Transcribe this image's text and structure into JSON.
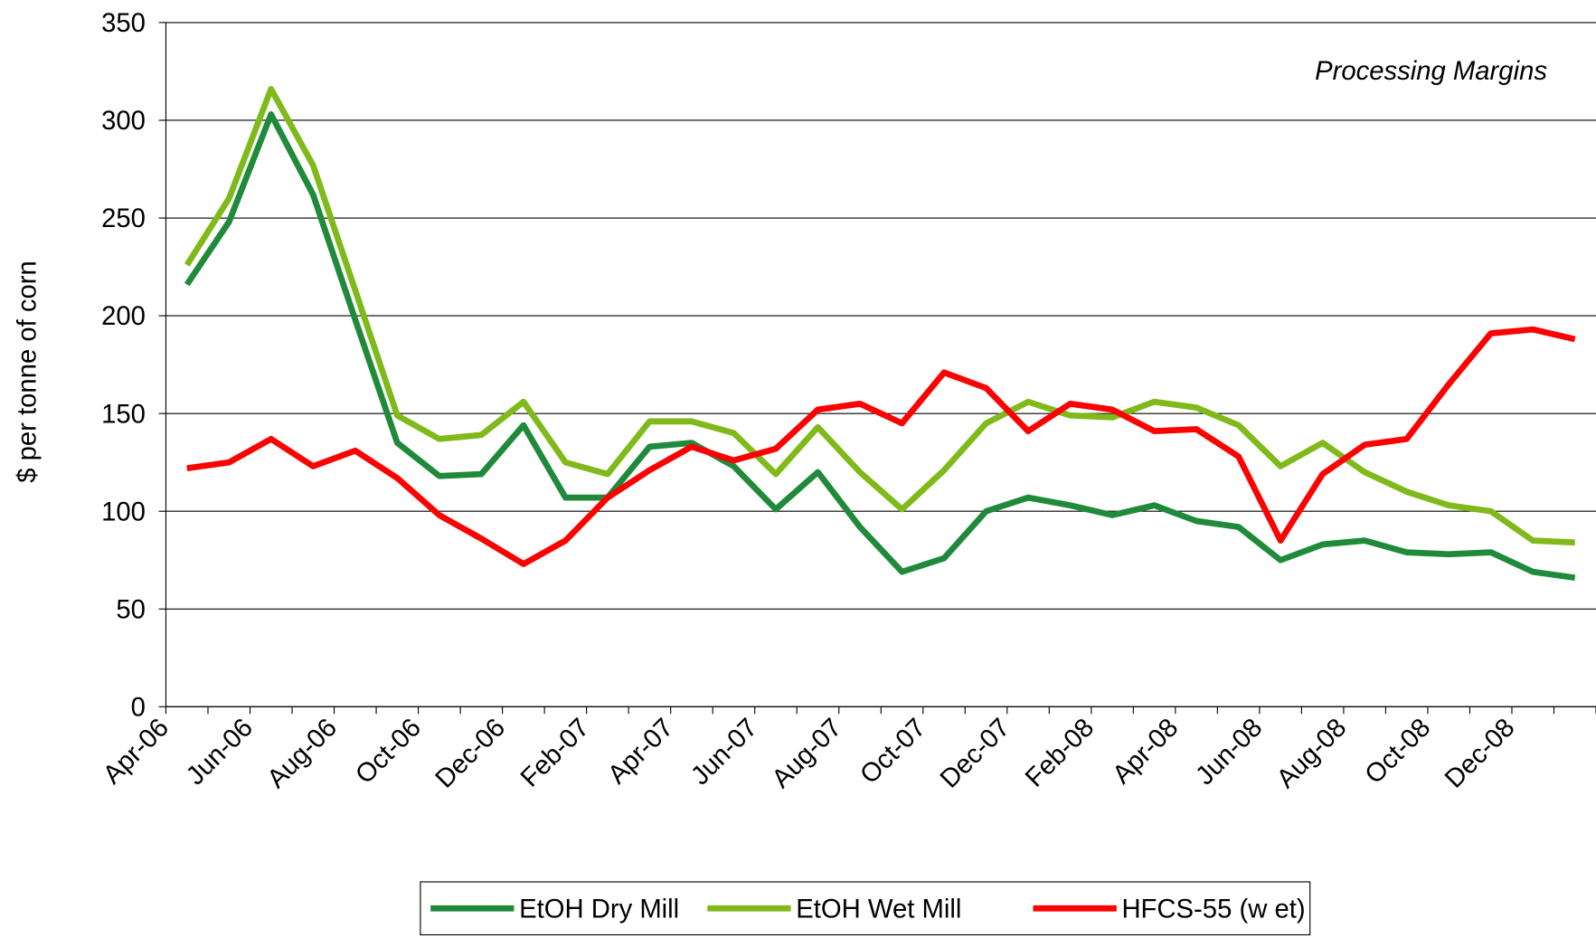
{
  "chart_data": {
    "type": "line",
    "annotation": "Processing Margins",
    "y_label": "$ per tonne of corn",
    "categories": [
      "Apr-06",
      null,
      "Jun-06",
      null,
      "Aug-06",
      null,
      "Oct-06",
      null,
      "Dec-06",
      null,
      "Feb-07",
      null,
      "Apr-07",
      null,
      "Jun-07",
      null,
      "Aug-07",
      null,
      "Oct-07",
      null,
      "Dec-07",
      null,
      "Feb-08",
      null,
      "Apr-08",
      null,
      "Jun-08",
      null,
      "Aug-08",
      null,
      "Oct-08",
      null,
      "Dec-08",
      null
    ],
    "series": [
      {
        "name": "EtOH Dry Mill",
        "color": "#1f8a3a",
        "values": [
          216,
          248,
          303,
          262,
          198,
          135,
          118,
          119,
          144,
          107,
          107,
          133,
          135,
          123,
          101,
          120,
          92,
          69,
          76,
          100,
          107,
          103,
          98,
          103,
          95,
          92,
          75,
          83,
          85,
          79,
          78,
          79,
          69,
          66
        ]
      },
      {
        "name": "EtOH Wet Mill",
        "color": "#7fba1a",
        "values": [
          226,
          260,
          316,
          277,
          213,
          149,
          137,
          139,
          156,
          125,
          119,
          146,
          146,
          140,
          119,
          143,
          120,
          101,
          121,
          145,
          156,
          149,
          148,
          156,
          153,
          144,
          123,
          135,
          120,
          110,
          103,
          100,
          85,
          84
        ]
      },
      {
        "name": "HFCS-55 (w et)",
        "color": "#ff0000",
        "values": [
          122,
          125,
          137,
          123,
          131,
          117,
          98,
          86,
          73,
          85,
          107,
          121,
          133,
          126,
          132,
          152,
          155,
          145,
          171,
          163,
          141,
          155,
          152,
          141,
          142,
          128,
          85,
          119,
          134,
          137,
          165,
          191,
          193,
          188
        ]
      }
    ],
    "ylim": [
      0,
      350
    ],
    "yticks": [
      0,
      50,
      100,
      150,
      200,
      250,
      300,
      350
    ],
    "grid": true
  }
}
